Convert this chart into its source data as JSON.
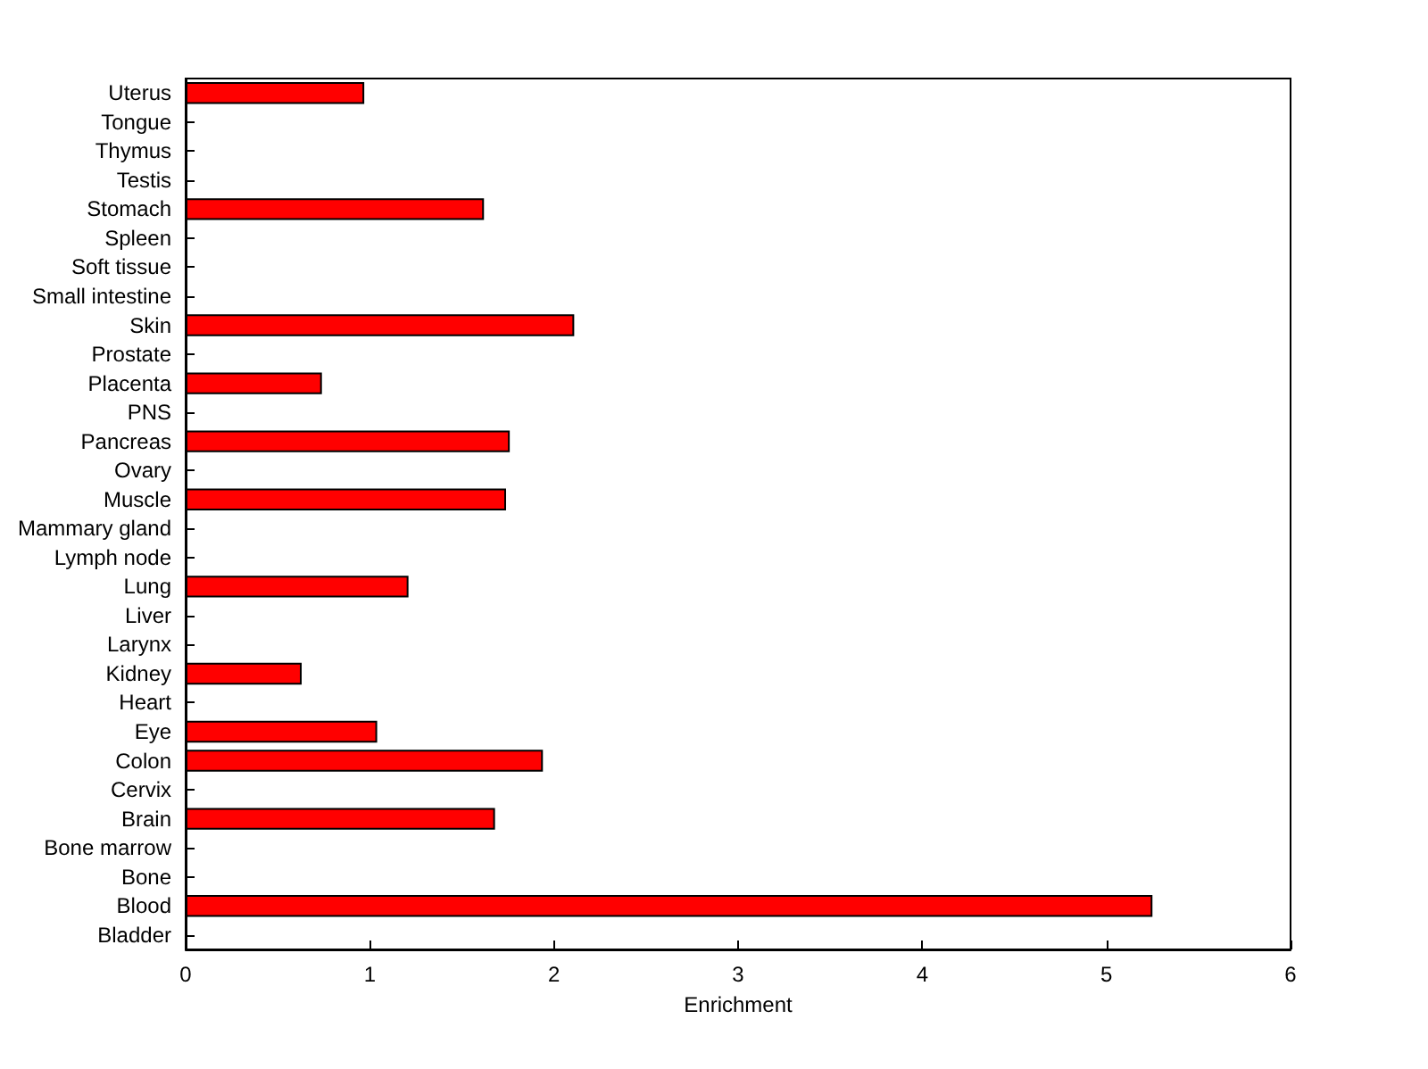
{
  "chart_data": {
    "type": "bar",
    "orientation": "horizontal",
    "xlabel": "Enrichment",
    "categories": [
      "Uterus",
      "Tongue",
      "Thymus",
      "Testis",
      "Stomach",
      "Spleen",
      "Soft tissue",
      "Small intestine",
      "Skin",
      "Prostate",
      "Placenta",
      "PNS",
      "Pancreas",
      "Ovary",
      "Muscle",
      "Mammary gland",
      "Lymph node",
      "Lung",
      "Liver",
      "Larynx",
      "Kidney",
      "Heart",
      "Eye",
      "Colon",
      "Cervix",
      "Brain",
      "Bone marrow",
      "Bone",
      "Blood",
      "Bladder"
    ],
    "values": [
      0.97,
      0,
      0,
      0,
      1.62,
      0,
      0,
      0,
      2.11,
      0,
      0.74,
      0,
      1.76,
      0,
      1.74,
      0,
      0,
      1.21,
      0,
      0,
      0.63,
      0,
      1.04,
      1.94,
      0,
      1.68,
      0,
      0,
      5.25,
      0
    ],
    "color": "#ff0000",
    "xlim": [
      0,
      6
    ],
    "xticks": [
      0,
      1,
      2,
      3,
      4,
      5,
      6
    ],
    "grid": false
  }
}
